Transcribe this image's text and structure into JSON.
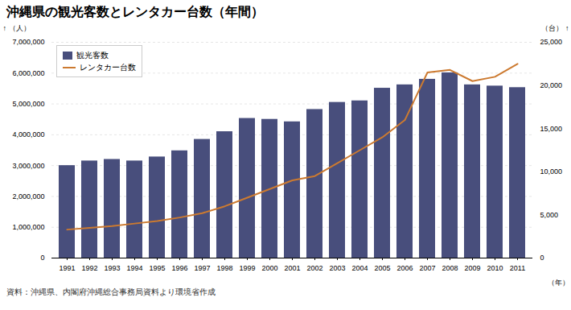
{
  "chart_data": {
    "type": "bar",
    "title": "沖縄県の観光客数とレンタカー台数（年間）",
    "x_label": "（年）",
    "y_label": "（人）",
    "y2_label": "（台）",
    "categories": [
      "1991",
      "1992",
      "1993",
      "1994",
      "1995",
      "1996",
      "1997",
      "1998",
      "1999",
      "2000",
      "2001",
      "2002",
      "2003",
      "2004",
      "2005",
      "2006",
      "2007",
      "2008",
      "2009",
      "2010",
      "2011"
    ],
    "series": [
      {
        "name": "観光客数",
        "type": "bar",
        "color": "#484e7c",
        "values": [
          3000000,
          3150000,
          3200000,
          3150000,
          3280000,
          3480000,
          3850000,
          4100000,
          4530000,
          4500000,
          4420000,
          4820000,
          5050000,
          5100000,
          5510000,
          5620000,
          5800000,
          6010000,
          5620000,
          5580000,
          5530000
        ]
      },
      {
        "name": "レンタカー台数",
        "type": "line",
        "color": "#cc7a30",
        "axis": "y2",
        "values": [
          3300,
          3500,
          3700,
          4000,
          4300,
          4700,
          5200,
          6000,
          7000,
          8000,
          9000,
          9500,
          11000,
          12500,
          14000,
          16000,
          21500,
          21800,
          20500,
          21000,
          22500
        ]
      }
    ],
    "ylim": [
      0,
      7000000
    ],
    "yticks": [
      0,
      {
        "value": 1000000,
        "label": "1,000,000"
      },
      {
        "value": 2000000,
        "label": "2,000,000"
      },
      {
        "value": 3000000,
        "label": "3,000,000"
      },
      {
        "value": 4000000,
        "label": "4,000,000"
      },
      {
        "value": 5000000,
        "label": "5,000,000"
      },
      {
        "value": 6000000,
        "label": "6,000,000"
      },
      {
        "value": 7000000,
        "label": "7,000,000"
      }
    ],
    "y2lim": [
      0,
      25000
    ],
    "y2ticks": [
      0,
      {
        "value": 5000,
        "label": "5,000"
      },
      {
        "value": 10000,
        "label": "10,000"
      },
      {
        "value": 15000,
        "label": "15,000"
      },
      {
        "value": 20000,
        "label": "20,000"
      },
      {
        "value": 25000,
        "label": "25,000"
      }
    ],
    "grid": true,
    "legend": "upper left",
    "annotations": [
      "資料：沖縄県、内閣府沖縄総合事務局資料より環境省作成"
    ]
  }
}
